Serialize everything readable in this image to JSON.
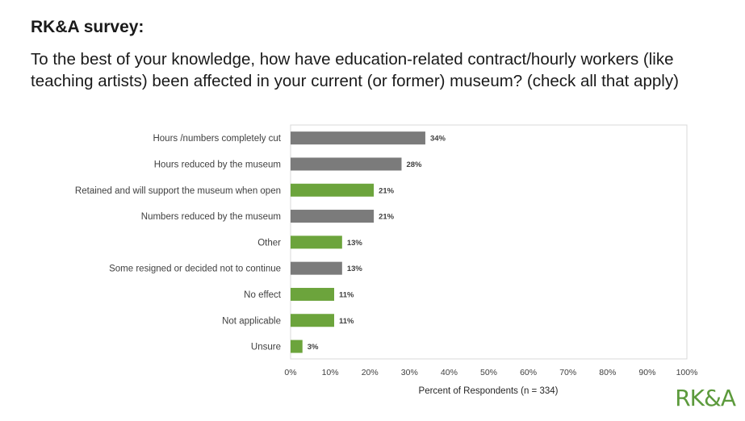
{
  "header": {
    "title": "RK&A survey:",
    "question": "To the best of your knowledge, how have education-related contract/hourly workers (like teaching artists) been affected in your current (or former) museum? (check all that apply)"
  },
  "logo": {
    "text": "RK&A",
    "color": "#5c9a3c"
  },
  "colors": {
    "gray": "#7b7b7b",
    "green": "#6ca43c"
  },
  "chart_data": {
    "type": "bar",
    "orientation": "horizontal",
    "categories": [
      "Hours /numbers completely cut",
      "Hours reduced by the museum",
      "Retained and will support the museum when open",
      "Numbers reduced by the museum",
      "Other",
      "Some resigned or decided not to continue",
      "No effect",
      "Not applicable",
      "Unsure"
    ],
    "values": [
      34,
      28,
      21,
      21,
      13,
      13,
      11,
      11,
      3
    ],
    "value_labels": [
      "34%",
      "28%",
      "21%",
      "21%",
      "13%",
      "13%",
      "11%",
      "11%",
      "3%"
    ],
    "bar_colors": [
      "gray",
      "gray",
      "green",
      "gray",
      "green",
      "gray",
      "green",
      "green",
      "green"
    ],
    "xlim": [
      0,
      100
    ],
    "xticks": [
      "0%",
      "10%",
      "20%",
      "30%",
      "40%",
      "50%",
      "60%",
      "70%",
      "80%",
      "90%",
      "100%"
    ],
    "xlabel": "Percent of Respondents (n = 334)",
    "grid": false
  }
}
